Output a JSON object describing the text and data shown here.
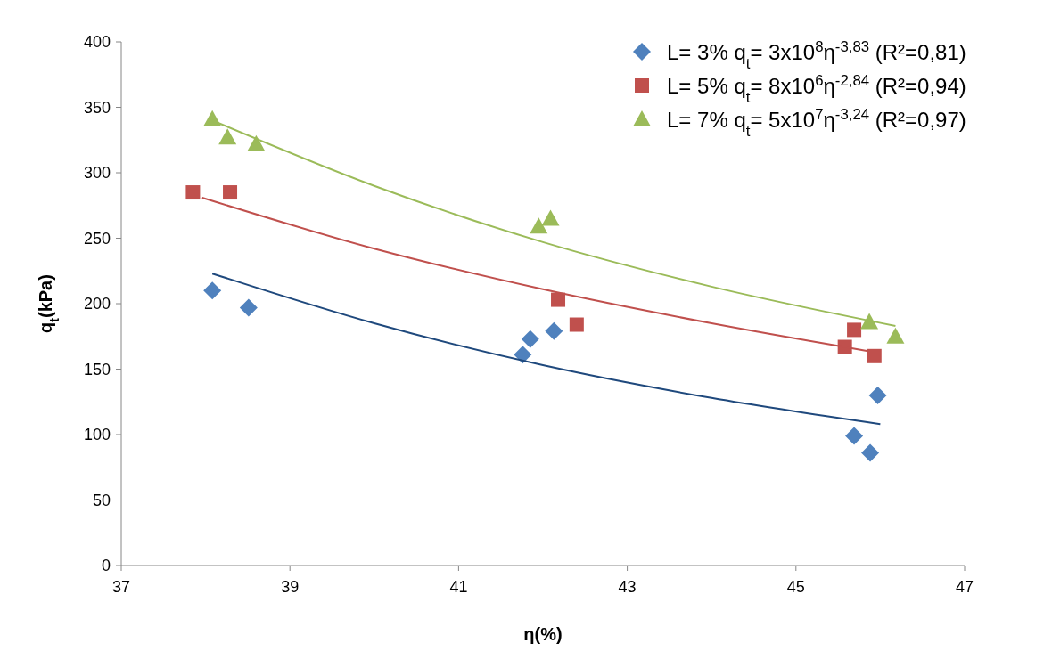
{
  "chart_data": {
    "type": "scatter",
    "xlabel": "η(%)",
    "ylabel": "q$_{t}$(kPa)",
    "xlim": [
      37,
      47
    ],
    "xticks": [
      37,
      39,
      41,
      43,
      45,
      47
    ],
    "ylim": [
      0,
      400
    ],
    "yticks": [
      0,
      50,
      100,
      150,
      200,
      250,
      300,
      350,
      400
    ],
    "grid": false,
    "legend": "top right",
    "series": [
      {
        "name": "L= 3% q$_{t}$= 3x10$^{8}$η$^{-3,83}$ (R²=0,81)",
        "color": "#4f81bd",
        "marker": "diamond",
        "x": [
          38.08,
          38.51,
          41.76,
          41.85,
          42.13,
          45.69,
          45.88,
          45.97
        ],
        "values": [
          210,
          197,
          161,
          173,
          179,
          99,
          86,
          130
        ]
      },
      {
        "name": "L= 5% q$_{t}$= 8x10$^{6}$η$^{-2,84}$ (R²=0,94)",
        "color": "#c0504d",
        "marker": "square",
        "x": [
          37.85,
          38.29,
          42.18,
          42.4,
          45.58,
          45.69,
          45.93
        ],
        "values": [
          285,
          285,
          203,
          184,
          167,
          180,
          160
        ]
      },
      {
        "name": "L= 7% q$_{t}$= 5x10$^{7}$η$^{-3,24}$ (R²=0,97)",
        "color": "#9bbb59",
        "marker": "triangle",
        "x": [
          38.08,
          38.26,
          38.6,
          41.95,
          42.09,
          45.87,
          46.18
        ],
        "values": [
          341,
          327,
          322,
          259,
          265,
          186,
          175
        ]
      },
      {
        "type": "line",
        "color": "#1f497d",
        "marker": "none",
        "x": [
          38.08,
          40,
          42,
          44,
          46
        ],
        "values": [
          223,
          185,
          153,
          128,
          108
        ]
      },
      {
        "type": "line",
        "color": "#c0504d",
        "marker": "none",
        "x": [
          37.96,
          40,
          42,
          44,
          45.84
        ],
        "values": [
          281,
          242,
          211,
          185,
          164
        ]
      },
      {
        "type": "line",
        "color": "#9bbb59",
        "marker": "none",
        "x": [
          38.08,
          40,
          42,
          44,
          46.18
        ],
        "values": [
          340,
          290,
          247,
          213,
          183
        ]
      }
    ]
  }
}
